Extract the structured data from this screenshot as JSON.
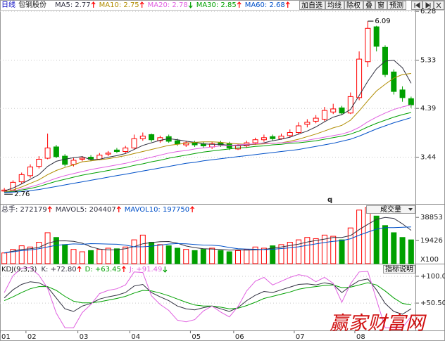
{
  "header": {
    "period": "日线",
    "stock": "包钢股份",
    "buttons": [
      "加自选",
      "均线",
      "除权",
      "叠",
      "窗",
      "预测"
    ]
  },
  "watermark": "赢家财富网",
  "stray_label": "q",
  "chart_data": [
    {
      "type": "candlestick",
      "up_color": "#ff0000",
      "down_color": "#00a000",
      "grid": true,
      "ylim": [
        2.53,
        6.31
      ],
      "yticks": [
        3.44,
        4.39,
        5.33,
        6.28
      ],
      "max_label": "6.09",
      "min_label": "2.76",
      "open": [
        2.78,
        2.8,
        2.96,
        3.08,
        3.26,
        3.42,
        3.64,
        3.46,
        3.3,
        3.4,
        3.44,
        3.4,
        3.5,
        3.58,
        3.55,
        3.62,
        3.8,
        3.88,
        3.76,
        3.84,
        3.76,
        3.68,
        3.72,
        3.7,
        3.64,
        3.72,
        3.7,
        3.6,
        3.66,
        3.72,
        3.78,
        3.84,
        3.8,
        3.86,
        3.92,
        4.08,
        4.14,
        4.18,
        4.32,
        4.4,
        4.3,
        4.6,
        5.3,
        5.98,
        5.58,
        5.1,
        4.75,
        4.58
      ],
      "high": [
        2.84,
        2.99,
        3.14,
        3.3,
        3.46,
        3.9,
        3.68,
        3.5,
        3.42,
        3.46,
        3.48,
        3.52,
        3.56,
        3.62,
        3.66,
        3.88,
        3.92,
        3.9,
        3.86,
        3.88,
        3.8,
        3.76,
        3.76,
        3.74,
        3.74,
        3.76,
        3.74,
        3.7,
        3.76,
        3.82,
        3.88,
        3.88,
        3.9,
        3.98,
        4.12,
        4.18,
        4.26,
        4.42,
        4.48,
        4.44,
        4.7,
        5.5,
        6.09,
        6.0,
        5.62,
        5.15,
        4.82,
        4.62
      ],
      "low": [
        2.76,
        2.76,
        2.92,
        3.04,
        3.22,
        3.4,
        3.42,
        3.26,
        3.26,
        3.36,
        3.36,
        3.38,
        3.46,
        3.52,
        3.52,
        3.6,
        3.76,
        3.74,
        3.72,
        3.72,
        3.66,
        3.64,
        3.64,
        3.62,
        3.6,
        3.64,
        3.58,
        3.58,
        3.62,
        3.68,
        3.74,
        3.76,
        3.78,
        3.82,
        3.88,
        4.02,
        4.1,
        4.14,
        4.28,
        4.26,
        4.28,
        4.55,
        5.2,
        5.5,
        5.0,
        4.66,
        4.52,
        4.4
      ],
      "close": [
        2.8,
        2.95,
        3.1,
        3.25,
        3.4,
        3.62,
        3.45,
        3.3,
        3.38,
        3.42,
        3.4,
        3.48,
        3.52,
        3.55,
        3.62,
        3.8,
        3.85,
        3.78,
        3.82,
        3.75,
        3.7,
        3.72,
        3.68,
        3.66,
        3.7,
        3.68,
        3.62,
        3.66,
        3.72,
        3.78,
        3.82,
        3.8,
        3.85,
        3.92,
        4.05,
        4.12,
        4.2,
        4.35,
        4.38,
        4.3,
        4.62,
        5.35,
        5.95,
        5.6,
        5.05,
        4.72,
        4.6,
        4.46
      ],
      "series": [
        {
          "name": "MA5: 2.77",
          "color": "#303040",
          "trend": "up",
          "values": [
            2.78,
            2.84,
            2.92,
            3.01,
            3.1,
            3.26,
            3.36,
            3.4,
            3.43,
            3.45,
            3.39,
            3.4,
            3.44,
            3.47,
            3.51,
            3.59,
            3.67,
            3.72,
            3.77,
            3.8,
            3.78,
            3.75,
            3.73,
            3.7,
            3.69,
            3.69,
            3.67,
            3.66,
            3.68,
            3.69,
            3.72,
            3.76,
            3.79,
            3.83,
            3.89,
            3.95,
            4.03,
            4.13,
            4.22,
            4.27,
            4.37,
            4.64,
            4.92,
            5.16,
            5.31,
            5.33,
            5.18,
            4.88
          ]
        },
        {
          "name": "MA10: 2.75",
          "color": "#b08c00",
          "trend": "up",
          "values": [
            2.76,
            2.8,
            2.86,
            2.93,
            3.0,
            3.1,
            3.18,
            3.24,
            3.29,
            3.35,
            3.37,
            3.39,
            3.41,
            3.44,
            3.47,
            3.51,
            3.55,
            3.59,
            3.63,
            3.67,
            3.69,
            3.71,
            3.73,
            3.74,
            3.74,
            3.73,
            3.71,
            3.7,
            3.69,
            3.69,
            3.7,
            3.71,
            3.72,
            3.75,
            3.79,
            3.84,
            3.89,
            3.95,
            4.01,
            4.06,
            4.16,
            4.34,
            4.54,
            4.73,
            4.86,
            4.98,
            5.05,
            5.07
          ]
        },
        {
          "name": "MA20: 2.78",
          "color": "#e060e0",
          "trend": "down",
          "values": [
            2.76,
            2.78,
            2.82,
            2.86,
            2.91,
            2.97,
            3.03,
            3.08,
            3.12,
            3.16,
            3.2,
            3.23,
            3.26,
            3.29,
            3.32,
            3.36,
            3.4,
            3.44,
            3.48,
            3.52,
            3.55,
            3.57,
            3.6,
            3.62,
            3.64,
            3.66,
            3.67,
            3.68,
            3.69,
            3.7,
            3.71,
            3.71,
            3.72,
            3.73,
            3.75,
            3.77,
            3.8,
            3.83,
            3.86,
            3.89,
            3.94,
            4.02,
            4.13,
            4.22,
            4.3,
            4.37,
            4.42,
            4.46
          ]
        },
        {
          "name": "MA30: 2.85",
          "color": "#00a000",
          "trend": "up",
          "values": [
            2.76,
            2.77,
            2.8,
            2.83,
            2.87,
            2.92,
            2.97,
            3.01,
            3.05,
            3.09,
            3.12,
            3.15,
            3.18,
            3.21,
            3.24,
            3.28,
            3.31,
            3.35,
            3.38,
            3.42,
            3.45,
            3.48,
            3.51,
            3.54,
            3.56,
            3.58,
            3.6,
            3.62,
            3.63,
            3.65,
            3.66,
            3.68,
            3.69,
            3.71,
            3.72,
            3.74,
            3.76,
            3.79,
            3.82,
            3.85,
            3.89,
            3.95,
            4.03,
            4.1,
            4.16,
            4.22,
            4.27,
            4.31
          ]
        },
        {
          "name": "MA60: 2.68",
          "color": "#0050c8",
          "trend": "up",
          "values": [
            2.75,
            2.76,
            2.77,
            2.79,
            2.81,
            2.84,
            2.87,
            2.9,
            2.93,
            2.96,
            2.99,
            3.02,
            3.05,
            3.08,
            3.11,
            3.14,
            3.17,
            3.2,
            3.23,
            3.26,
            3.29,
            3.32,
            3.34,
            3.37,
            3.39,
            3.41,
            3.43,
            3.45,
            3.47,
            3.49,
            3.51,
            3.53,
            3.55,
            3.57,
            3.59,
            3.62,
            3.65,
            3.68,
            3.71,
            3.75,
            3.79,
            3.85,
            3.92,
            3.99,
            4.05,
            4.11,
            4.16,
            4.21
          ]
        }
      ]
    },
    {
      "type": "bar",
      "ylim": [
        0,
        49600
      ],
      "yticks": [
        19426,
        38853
      ],
      "unit_label": "X100",
      "selector": "成交量",
      "series": [
        {
          "name": "总手: 272179",
          "style": "bar",
          "color": "#303040",
          "trend": "up",
          "values": [
            9000,
            12000,
            15000,
            14000,
            18000,
            26000,
            22000,
            16000,
            12000,
            10000,
            11000,
            12000,
            13000,
            12500,
            14000,
            20000,
            24000,
            18000,
            16000,
            15000,
            13000,
            12000,
            11000,
            12000,
            13000,
            11000,
            10000,
            11000,
            12000,
            14000,
            13000,
            15000,
            16000,
            18000,
            20000,
            22000,
            21000,
            24000,
            23000,
            20000,
            30000,
            45000,
            47000,
            40000,
            32000,
            26000,
            22000,
            20000
          ]
        },
        {
          "name": "MAVOL5: 204407",
          "style": "line",
          "color": "#303040",
          "trend": "up",
          "values": [
            9000,
            10500,
            12000,
            12500,
            13600,
            17000,
            19000,
            19200,
            18800,
            17200,
            14200,
            12200,
            11600,
            11700,
            12500,
            14300,
            16700,
            17700,
            18400,
            18600,
            17200,
            14800,
            13400,
            12600,
            12200,
            12000,
            11400,
            11600,
            11400,
            11600,
            12000,
            13000,
            14000,
            15200,
            16400,
            18200,
            19400,
            20600,
            22000,
            22000,
            23600,
            28600,
            33000,
            37200,
            38800,
            38000,
            33400,
            28000
          ]
        },
        {
          "name": "MAVOL10: 197750",
          "style": "line",
          "color": "#0050c8",
          "trend": "up",
          "values": [
            9000,
            10000,
            11000,
            11500,
            12600,
            14000,
            15400,
            16000,
            16600,
            16300,
            16800,
            16700,
            16500,
            16300,
            15600,
            14200,
            14200,
            14700,
            15600,
            16500,
            16900,
            16700,
            16100,
            15600,
            15500,
            14900,
            13600,
            12600,
            12300,
            12100,
            11800,
            12100,
            12700,
            13300,
            14200,
            15400,
            16600,
            17800,
            18800,
            19300,
            20900,
            23900,
            26500,
            29000,
            30300,
            30300,
            30500,
            30800
          ]
        }
      ]
    },
    {
      "type": "line",
      "title": "KDJ(9,3,3)",
      "button": "指标说明",
      "grid": true,
      "ylim": [
        0,
        122
      ],
      "yticks": [
        {
          "value": 50.5,
          "label": "+50.50"
        },
        {
          "value": 100,
          "label": "+100.0"
        }
      ],
      "categories": [
        "01",
        null,
        null,
        "02",
        null,
        null,
        null,
        null,
        null,
        "03",
        null,
        null,
        null,
        null,
        null,
        "04",
        null,
        null,
        null,
        null,
        null,
        null,
        "05",
        null,
        null,
        null,
        null,
        "06",
        null,
        null,
        null,
        null,
        null,
        null,
        "07",
        null,
        null,
        null,
        null,
        null,
        null,
        "08",
        null,
        null,
        null,
        null,
        null,
        null
      ],
      "series": [
        {
          "name": "K: +72.80",
          "color": "#303040",
          "trend": "up",
          "values": [
            60,
            75,
            85,
            90,
            88,
            80,
            60,
            40,
            35,
            45,
            50,
            58,
            62,
            65,
            70,
            82,
            85,
            70,
            62,
            55,
            45,
            40,
            38,
            42,
            45,
            40,
            35,
            42,
            55,
            65,
            72,
            70,
            75,
            80,
            85,
            86,
            84,
            88,
            85,
            70,
            82,
            92,
            95,
            75,
            50,
            35,
            30,
            40
          ]
        },
        {
          "name": "D: +63.45",
          "color": "#00a000",
          "trend": "up",
          "values": [
            55,
            62,
            70,
            77,
            81,
            81,
            74,
            63,
            54,
            51,
            51,
            53,
            56,
            59,
            63,
            69,
            74,
            73,
            69,
            64,
            58,
            52,
            47,
            45,
            45,
            43,
            40,
            41,
            46,
            52,
            59,
            63,
            67,
            71,
            76,
            79,
            81,
            83,
            84,
            79,
            80,
            84,
            88,
            84,
            73,
            60,
            50,
            47
          ]
        },
        {
          "name": "J: +91.49",
          "color": "#e060e0",
          "trend": "down",
          "values": [
            70,
            101,
            115,
            116,
            102,
            78,
            32,
            5,
            5,
            33,
            48,
            68,
            74,
            77,
            84,
            108,
            107,
            64,
            48,
            37,
            19,
            16,
            20,
            36,
            45,
            34,
            25,
            44,
            73,
            91,
            98,
            84,
            91,
            98,
            103,
            100,
            90,
            98,
            87,
            52,
            86,
            108,
            109,
            57,
            5,
            5,
            5,
            26
          ]
        }
      ]
    }
  ]
}
